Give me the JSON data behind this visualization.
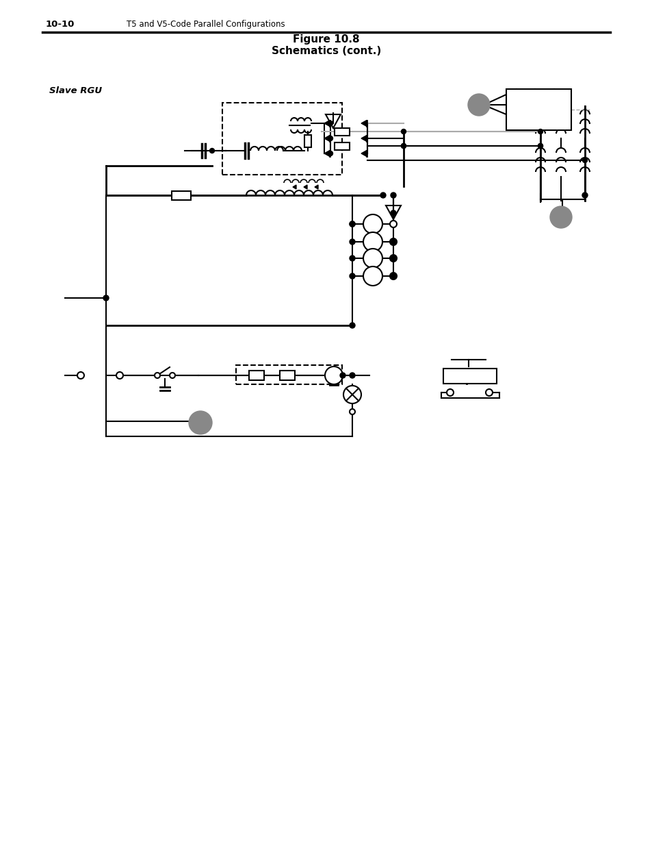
{
  "title_line1": "Figure 10.8",
  "title_line2": "Schematics (cont.)",
  "header_num": "10-10",
  "header_text": "T5 and V5-Code Parallel Configurations",
  "slave_rgu_label": "Slave RGU",
  "bg_color": "#ffffff",
  "lc": "#000000",
  "gc": "#888888",
  "lgc": "#aaaaaa"
}
